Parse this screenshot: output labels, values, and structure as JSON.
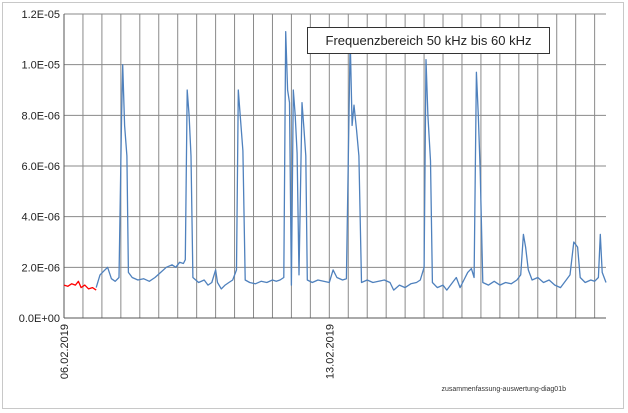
{
  "chart_data": {
    "type": "line",
    "title": "Frequenzbereich 50 kHz bis 60 kHz",
    "footer_note": "zusammenfassung-auswertung-diag01b",
    "xlabel": "",
    "ylabel": "",
    "ylim": [
      0,
      1.2e-05
    ],
    "y_ticks": [
      0,
      2e-06,
      4e-06,
      6e-06,
      8e-06,
      1e-05,
      1.2e-05
    ],
    "y_tick_labels": [
      "0.0E+00",
      "2.0E-06",
      "4.0E-06",
      "6.0E-06",
      "8.0E-06",
      "1.0E-05",
      "1.2E-05"
    ],
    "x_unit": "days since start of record",
    "xlim": [
      0,
      14.3
    ],
    "x_tick_labels": [
      {
        "x": 0,
        "label": "06.02.2019"
      },
      {
        "x": 7,
        "label": "13.02.2019"
      }
    ],
    "grid": {
      "horizontal": true,
      "vertical": true
    },
    "series": [
      {
        "color": "#ff0000",
        "points": [
          [
            0.0,
            1.3e-06
          ],
          [
            0.1,
            1.25e-06
          ],
          [
            0.2,
            1.35e-06
          ],
          [
            0.3,
            1.3e-06
          ],
          [
            0.38,
            1.45e-06
          ],
          [
            0.45,
            1.2e-06
          ],
          [
            0.55,
            1.3e-06
          ],
          [
            0.65,
            1.15e-06
          ],
          [
            0.75,
            1.2e-06
          ],
          [
            0.85,
            1.1e-06
          ]
        ]
      },
      {
        "color": "#4f81bd",
        "points": [
          [
            0.85,
            1.2e-06
          ],
          [
            0.95,
            1.7e-06
          ],
          [
            1.05,
            1.85e-06
          ],
          [
            1.15,
            2e-06
          ],
          [
            1.25,
            1.55e-06
          ],
          [
            1.35,
            1.45e-06
          ],
          [
            1.45,
            1.6e-06
          ],
          [
            1.52,
            8e-06
          ],
          [
            1.55,
            1e-05
          ],
          [
            1.6,
            7.6e-06
          ],
          [
            1.66,
            6.4e-06
          ],
          [
            1.7,
            1.8e-06
          ],
          [
            1.8,
            1.6e-06
          ],
          [
            1.95,
            1.5e-06
          ],
          [
            2.1,
            1.55e-06
          ],
          [
            2.25,
            1.45e-06
          ],
          [
            2.4,
            1.6e-06
          ],
          [
            2.55,
            1.8e-06
          ],
          [
            2.7,
            2e-06
          ],
          [
            2.85,
            2.1e-06
          ],
          [
            2.95,
            2e-06
          ],
          [
            3.05,
            2.2e-06
          ],
          [
            3.15,
            2.15e-06
          ],
          [
            3.2,
            2.3e-06
          ],
          [
            3.25,
            9e-06
          ],
          [
            3.3,
            8e-06
          ],
          [
            3.35,
            6.4e-06
          ],
          [
            3.4,
            1.6e-06
          ],
          [
            3.55,
            1.4e-06
          ],
          [
            3.7,
            1.5e-06
          ],
          [
            3.8,
            1.3e-06
          ],
          [
            3.9,
            1.4e-06
          ],
          [
            4.0,
            1.9e-06
          ],
          [
            4.05,
            1.4e-06
          ],
          [
            4.15,
            1.15e-06
          ],
          [
            4.25,
            1.3e-06
          ],
          [
            4.35,
            1.4e-06
          ],
          [
            4.45,
            1.5e-06
          ],
          [
            4.55,
            1.9e-06
          ],
          [
            4.6,
            9e-06
          ],
          [
            4.65,
            8e-06
          ],
          [
            4.72,
            6.6e-06
          ],
          [
            4.78,
            1.5e-06
          ],
          [
            4.9,
            1.4e-06
          ],
          [
            5.05,
            1.35e-06
          ],
          [
            5.2,
            1.45e-06
          ],
          [
            5.35,
            1.4e-06
          ],
          [
            5.5,
            1.5e-06
          ],
          [
            5.6,
            1.45e-06
          ],
          [
            5.7,
            1.5e-06
          ],
          [
            5.8,
            1.6e-06
          ],
          [
            5.85,
            1.13e-05
          ],
          [
            5.9,
            9e-06
          ],
          [
            5.95,
            8.5e-06
          ],
          [
            6.0,
            1.3e-06
          ],
          [
            6.05,
            9e-06
          ],
          [
            6.1,
            8e-06
          ],
          [
            6.15,
            6.5e-06
          ],
          [
            6.2,
            1.7e-06
          ],
          [
            6.28,
            8.5e-06
          ],
          [
            6.33,
            7.5e-06
          ],
          [
            6.38,
            6.4e-06
          ],
          [
            6.42,
            1.5e-06
          ],
          [
            6.55,
            1.4e-06
          ],
          [
            6.7,
            1.5e-06
          ],
          [
            6.85,
            1.45e-06
          ],
          [
            7.0,
            1.4e-06
          ],
          [
            7.1,
            1.9e-06
          ],
          [
            7.2,
            1.6e-06
          ],
          [
            7.35,
            1.5e-06
          ],
          [
            7.45,
            1.55e-06
          ],
          [
            7.55,
            1.1e-05
          ],
          [
            7.6,
            7.6e-06
          ],
          [
            7.65,
            8.4e-06
          ],
          [
            7.72,
            7.4e-06
          ],
          [
            7.78,
            6.4e-06
          ],
          [
            7.85,
            1.4e-06
          ],
          [
            8.0,
            1.5e-06
          ],
          [
            8.15,
            1.4e-06
          ],
          [
            8.3,
            1.45e-06
          ],
          [
            8.45,
            1.5e-06
          ],
          [
            8.6,
            1.4e-06
          ],
          [
            8.7,
            1.1e-06
          ],
          [
            8.85,
            1.3e-06
          ],
          [
            9.0,
            1.2e-06
          ],
          [
            9.15,
            1.35e-06
          ],
          [
            9.3,
            1.4e-06
          ],
          [
            9.4,
            1.5e-06
          ],
          [
            9.5,
            2e-06
          ],
          [
            9.55,
            1.02e-05
          ],
          [
            9.6,
            8e-06
          ],
          [
            9.67,
            6.2e-06
          ],
          [
            9.72,
            1.4e-06
          ],
          [
            9.85,
            1.2e-06
          ],
          [
            10.0,
            1.3e-06
          ],
          [
            10.1,
            1.1e-06
          ],
          [
            10.25,
            1.4e-06
          ],
          [
            10.35,
            1.6e-06
          ],
          [
            10.45,
            1.2e-06
          ],
          [
            10.55,
            1.5e-06
          ],
          [
            10.65,
            1.8e-06
          ],
          [
            10.75,
            1.95e-06
          ],
          [
            10.82,
            1.6e-06
          ],
          [
            10.88,
            9.7e-06
          ],
          [
            10.93,
            8e-06
          ],
          [
            10.98,
            5.8e-06
          ],
          [
            11.05,
            1.4e-06
          ],
          [
            11.2,
            1.3e-06
          ],
          [
            11.35,
            1.45e-06
          ],
          [
            11.5,
            1.3e-06
          ],
          [
            11.65,
            1.4e-06
          ],
          [
            11.8,
            1.35e-06
          ],
          [
            11.95,
            1.5e-06
          ],
          [
            12.05,
            1.7e-06
          ],
          [
            12.12,
            3.3e-06
          ],
          [
            12.18,
            2.8e-06
          ],
          [
            12.25,
            1.9e-06
          ],
          [
            12.35,
            1.5e-06
          ],
          [
            12.5,
            1.6e-06
          ],
          [
            12.65,
            1.4e-06
          ],
          [
            12.8,
            1.5e-06
          ],
          [
            12.95,
            1.3e-06
          ],
          [
            13.1,
            1.2e-06
          ],
          [
            13.25,
            1.5e-06
          ],
          [
            13.35,
            1.7e-06
          ],
          [
            13.45,
            3e-06
          ],
          [
            13.55,
            2.8e-06
          ],
          [
            13.62,
            1.6e-06
          ],
          [
            13.75,
            1.4e-06
          ],
          [
            13.9,
            1.5e-06
          ],
          [
            14.0,
            1.45e-06
          ],
          [
            14.1,
            1.6e-06
          ],
          [
            14.15,
            3.3e-06
          ],
          [
            14.2,
            1.8e-06
          ],
          [
            14.3,
            1.4e-06
          ]
        ]
      }
    ]
  }
}
